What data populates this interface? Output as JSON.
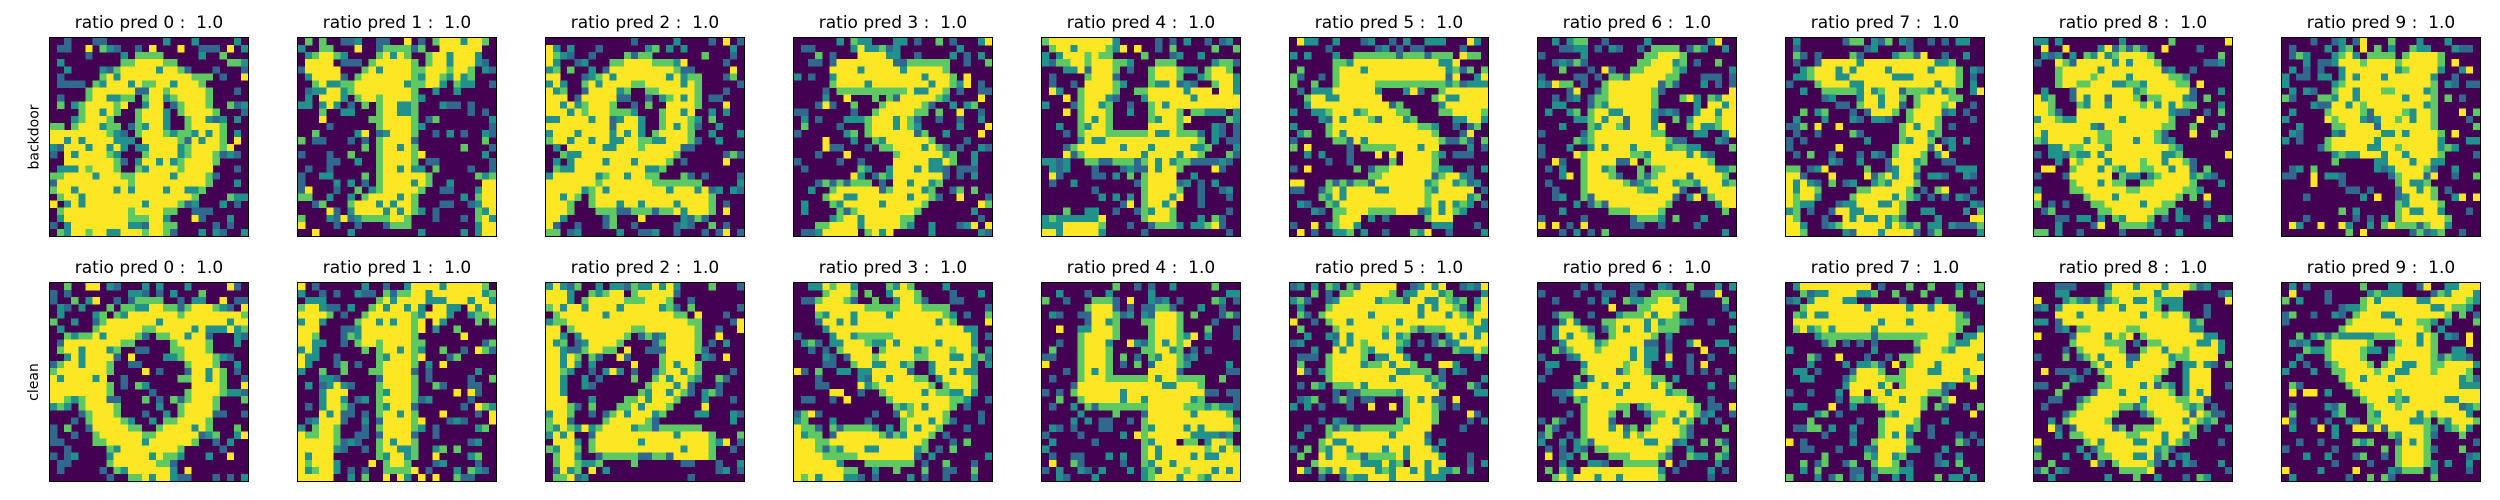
{
  "chart_data": {
    "type": "heatmap",
    "rows": [
      {
        "label": "backdoor",
        "panels": [
          {
            "title": "ratio pred 0 :  1.0",
            "digit": 0,
            "seed": 101
          },
          {
            "title": "ratio pred 1 :  1.0",
            "digit": 1,
            "seed": 102
          },
          {
            "title": "ratio pred 2 :  1.0",
            "digit": 2,
            "seed": 103
          },
          {
            "title": "ratio pred 3 :  1.0",
            "digit": 3,
            "seed": 104
          },
          {
            "title": "ratio pred 4 :  1.0",
            "digit": 4,
            "seed": 105
          },
          {
            "title": "ratio pred 5 :  1.0",
            "digit": 5,
            "seed": 106
          },
          {
            "title": "ratio pred 6 :  1.0",
            "digit": 6,
            "seed": 107
          },
          {
            "title": "ratio pred 7 :  1.0",
            "digit": 7,
            "seed": 108
          },
          {
            "title": "ratio pred 8 :  1.0",
            "digit": 8,
            "seed": 109
          },
          {
            "title": "ratio pred 9 :  1.0",
            "digit": 9,
            "seed": 110
          }
        ]
      },
      {
        "label": "clean",
        "panels": [
          {
            "title": "ratio pred 0 :  1.0",
            "digit": 0,
            "seed": 201
          },
          {
            "title": "ratio pred 1 :  1.0",
            "digit": 1,
            "seed": 202
          },
          {
            "title": "ratio pred 2 :  1.0",
            "digit": 2,
            "seed": 203
          },
          {
            "title": "ratio pred 3 :  1.0",
            "digit": 3,
            "seed": 204
          },
          {
            "title": "ratio pred 4 :  1.0",
            "digit": 4,
            "seed": 205
          },
          {
            "title": "ratio pred 5 :  1.0",
            "digit": 5,
            "seed": 206
          },
          {
            "title": "ratio pred 6 :  1.0",
            "digit": 6,
            "seed": 207
          },
          {
            "title": "ratio pred 7 :  1.0",
            "digit": 7,
            "seed": 208
          },
          {
            "title": "ratio pred 8 :  1.0",
            "digit": 8,
            "seed": 209
          },
          {
            "title": "ratio pred 9 :  1.0",
            "digit": 9,
            "seed": 210
          }
        ]
      }
    ],
    "grid_size": 28,
    "colormap": "viridis",
    "colors": {
      "low": "#440154",
      "mid_low": "#31688e",
      "mid": "#21918c",
      "mid_high": "#5ec962",
      "high": "#fde725"
    }
  }
}
